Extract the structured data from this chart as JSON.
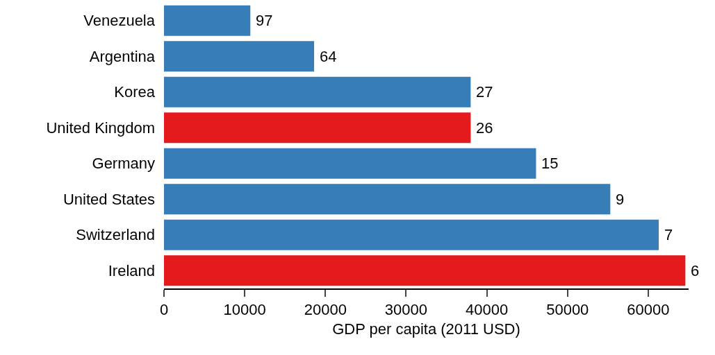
{
  "chart_data": {
    "type": "bar",
    "orientation": "horizontal",
    "xlabel": "GDP per capita (2011 USD)",
    "categories": [
      "Venezuela",
      "Argentina",
      "Korea",
      "United Kingdom",
      "Germany",
      "United States",
      "Switzerland",
      "Ireland"
    ],
    "values": [
      10700,
      18600,
      38000,
      38000,
      46100,
      55300,
      61300,
      64600
    ],
    "colors": [
      "#377eb8",
      "#377eb8",
      "#377eb8",
      "#e41a1c",
      "#377eb8",
      "#377eb8",
      "#377eb8",
      "#e41a1c"
    ],
    "annotations": [
      {
        "text": "97",
        "x": 10700,
        "y": "Venezuela"
      },
      {
        "text": "64",
        "x": 18600,
        "y": "Argentina"
      },
      {
        "text": "27",
        "x": 38000,
        "y": "Korea"
      },
      {
        "text": "26",
        "x": 38000,
        "y": "United Kingdom"
      },
      {
        "text": "15",
        "x": 46100,
        "y": "Germany"
      },
      {
        "text": "9",
        "x": 55300,
        "y": "United States"
      },
      {
        "text": "7",
        "x": 61300,
        "y": "Switzerland"
      },
      {
        "text": "6",
        "x": 64600,
        "y": "Ireland"
      }
    ],
    "xlim": [
      0,
      65000
    ],
    "xticks": [
      0,
      10000,
      20000,
      30000,
      40000,
      50000,
      60000
    ],
    "grid": false
  }
}
